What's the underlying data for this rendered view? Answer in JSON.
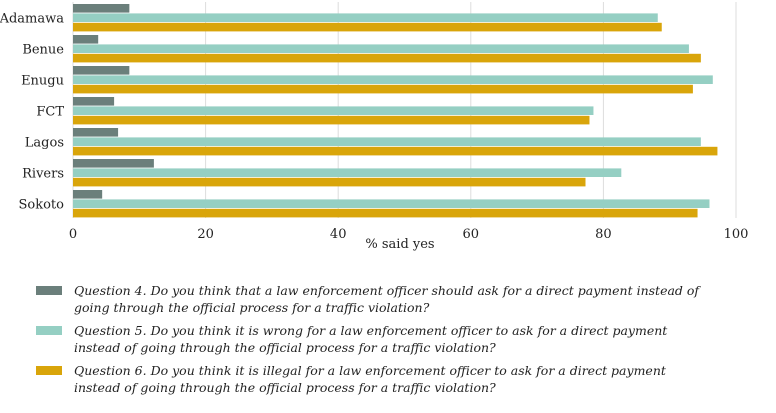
{
  "chart_data": {
    "type": "bar",
    "orientation": "horizontal",
    "categories": [
      "Adamawa",
      "Benue",
      "Enugu",
      "FCT",
      "Lagos",
      "Rivers",
      "Sokoto"
    ],
    "series": [
      {
        "name": "Question 4. Do you think that a law enforcement officer should ask for a direct payment instead of going through the official process for a traffic violation?",
        "color": "#6b7f7b",
        "values": [
          8.5,
          3.8,
          8.5,
          6.2,
          6.8,
          12.2,
          4.4
        ]
      },
      {
        "name": "Question 5. Do you think it is wrong for a law enforcement officer to ask for a direct payment instead of going through the official process for a traffic violation?",
        "color": "#95cfc3",
        "values": [
          88.2,
          92.9,
          96.5,
          78.5,
          94.7,
          82.7,
          96.0
        ]
      },
      {
        "name": "Question 6. Do you think it is illegal for a law enforcement officer to ask for a direct payment instead of going through the official process for a traffic violation?",
        "color": "#d9a50a",
        "values": [
          88.8,
          94.7,
          93.5,
          77.9,
          97.2,
          77.3,
          94.2
        ]
      }
    ],
    "xticks": [
      "0",
      "20",
      "40",
      "60",
      "80",
      "100"
    ],
    "xlabel": "% said yes",
    "xlim": [
      0,
      100
    ],
    "grid": true,
    "legend_position": "bottom"
  }
}
